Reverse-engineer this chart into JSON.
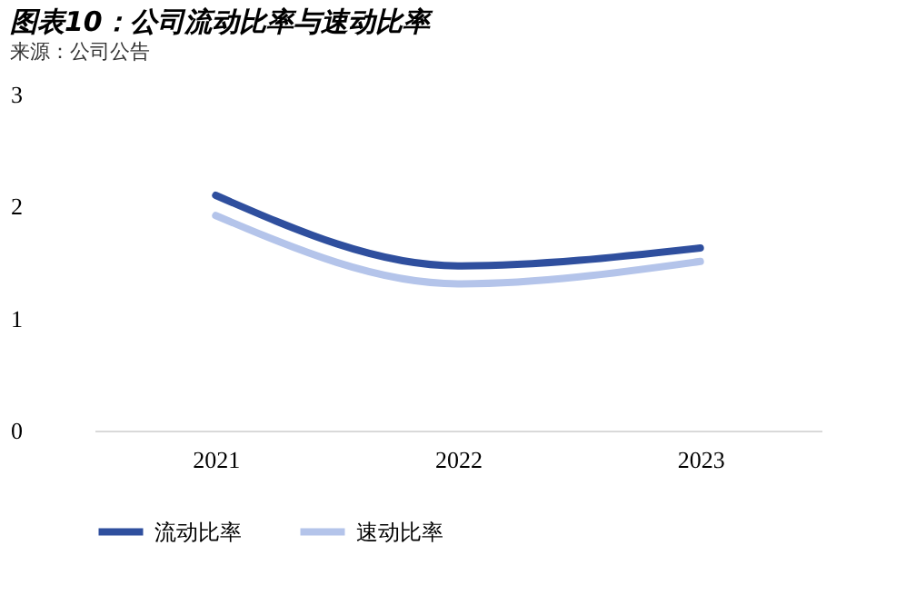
{
  "chart_data": {
    "type": "line",
    "title": "图表10：公司流动比率与速动比率",
    "categories": [
      "2021",
      "2022",
      "2023"
    ],
    "series": [
      {
        "name": "流动比率",
        "color": "#2f4f9e",
        "values": [
          2.1,
          1.47,
          1.63
        ]
      },
      {
        "name": "速动比率",
        "color": "#b4c4ea",
        "values": [
          1.92,
          1.31,
          1.51
        ]
      }
    ],
    "ylim": [
      0,
      3
    ],
    "yticks": [
      0,
      1,
      2,
      3
    ],
    "grid": false,
    "legend": "bottom",
    "marker": "none",
    "line_style": "solid",
    "annotations": [
      "来源：公司公告"
    ]
  }
}
